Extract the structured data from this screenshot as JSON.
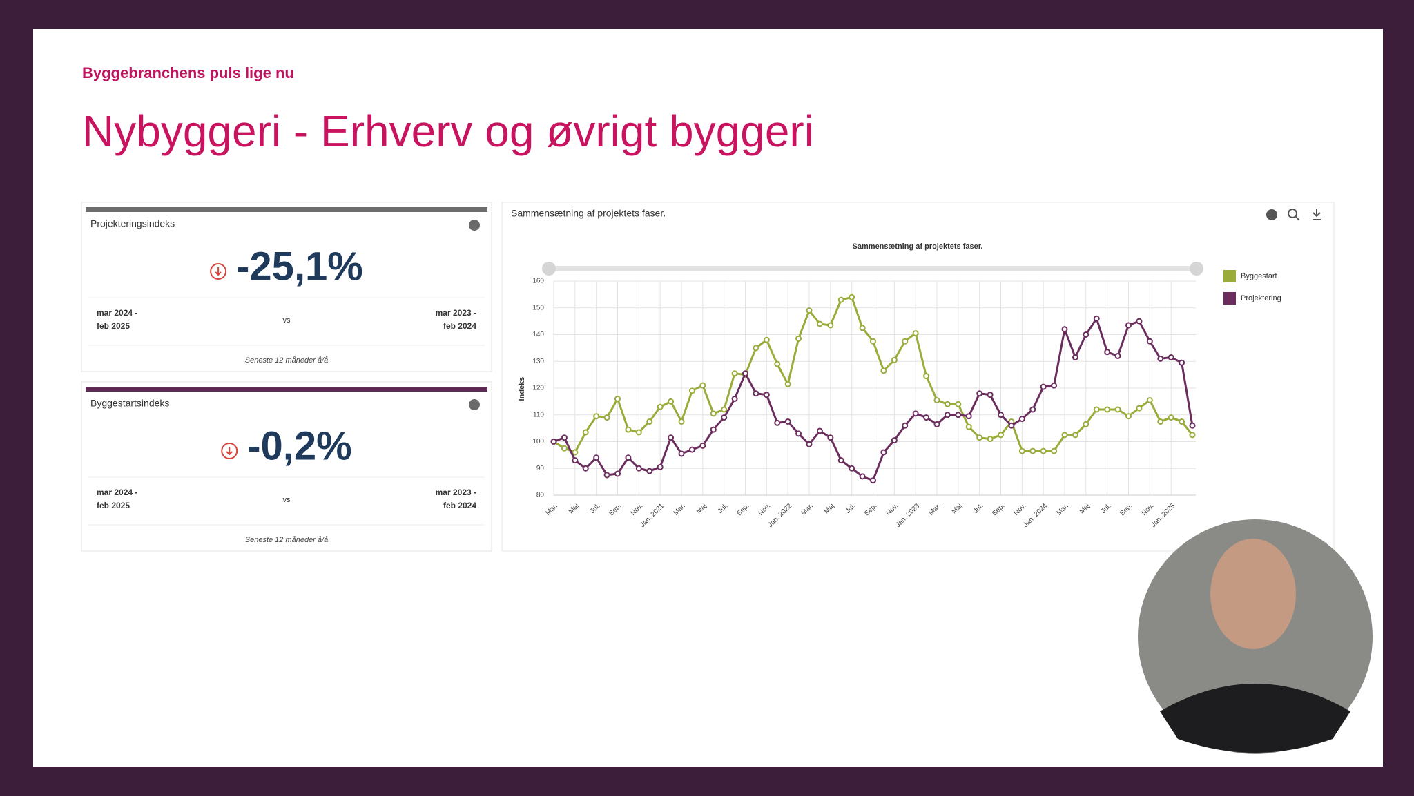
{
  "header": {
    "kicker": "Byggebranchens puls lige nu",
    "title": "Nybyggeri - Erhverv og øvrigt byggeri"
  },
  "cards": [
    {
      "title": "Projekteringsindeks",
      "value": "-25,1%",
      "left": [
        "mar 2024 -",
        "feb 2025"
      ],
      "vs": "vs",
      "right": [
        "mar 2023 -",
        "feb 2024"
      ],
      "footer": "Seneste 12 måneder å/å",
      "bar_color": "#6d6d6d"
    },
    {
      "title": "Byggestartsindeks",
      "value": "-0,2%",
      "left": [
        "mar 2024 -",
        "feb 2025"
      ],
      "vs": "vs",
      "right": [
        "mar 2023 -",
        "feb 2024"
      ],
      "footer": "Seneste 12 måneder å/å",
      "bar_color": "#5e2a55"
    }
  ],
  "chart_data": {
    "type": "line",
    "panel_title": "Sammensætning af projektets faser.",
    "title": "Sammensætning af projektets faser.",
    "ylabel": "Indeks",
    "categories": [
      "Mar.",
      null,
      "Maj",
      null,
      "Jul.",
      null,
      "Sep.",
      null,
      "Nov.",
      null,
      "Jan. 2021",
      null,
      "Mar.",
      null,
      "Maj",
      null,
      "Jul.",
      null,
      "Sep.",
      null,
      "Nov.",
      null,
      "Jan. 2022",
      null,
      "Mar.",
      null,
      "Maj",
      null,
      "Jul.",
      null,
      "Sep.",
      null,
      "Nov.",
      null,
      "Jan. 2023",
      null,
      "Mar.",
      null,
      "Maj",
      null,
      "Jul.",
      null,
      "Sep.",
      null,
      "Nov.",
      null,
      "Jan. 2024",
      null,
      "Mar.",
      null,
      "Maj",
      null,
      "Jul.",
      null,
      "Sep.",
      null,
      "Nov.",
      null,
      "Jan. 2025",
      null,
      null
    ],
    "series": [
      {
        "name": "Byggestart",
        "color": "#9aab3a",
        "values": [
          100,
          97.5,
          96,
          103.5,
          109.5,
          109,
          116,
          104.5,
          103.5,
          107.5,
          113,
          115,
          107.5,
          119,
          121,
          110.5,
          112,
          125.5,
          125,
          135,
          138,
          129,
          121.5,
          138.5,
          149,
          144,
          143.5,
          153,
          154,
          142.5,
          137.5,
          126.5,
          130.5,
          137.5,
          140.5,
          124.5,
          115.5,
          114,
          114,
          105.5,
          101.5,
          101,
          102.5,
          107.5,
          96.5,
          96.5,
          96.5,
          96.5,
          102.5,
          102.5,
          106.5,
          112,
          112,
          112,
          109.5,
          112.5,
          115.5,
          107.5,
          109,
          107.5,
          102.5
        ]
      },
      {
        "name": "Projektering",
        "color": "#6b2d5e",
        "values": [
          100,
          101.5,
          93,
          90,
          94,
          87.5,
          88,
          94,
          90,
          89,
          90.5,
          101.5,
          95.5,
          97,
          98.5,
          104.5,
          109,
          116,
          125.5,
          118,
          117.5,
          107,
          107.5,
          103,
          99,
          104,
          101.5,
          93,
          90,
          87,
          85.5,
          96,
          100.5,
          106,
          110.5,
          109,
          106.5,
          110,
          110,
          109.5,
          118,
          117.5,
          110,
          106,
          108.5,
          112,
          120.5,
          121,
          142,
          131.5,
          140,
          146,
          133.5,
          132,
          143.5,
          145,
          137.5,
          131,
          131.5,
          129.5,
          106
        ]
      }
    ],
    "ylim": [
      80,
      160
    ],
    "yticks": [
      80,
      90,
      100,
      110,
      120,
      130,
      140,
      150,
      160
    ],
    "grid": true,
    "legend": "right"
  }
}
